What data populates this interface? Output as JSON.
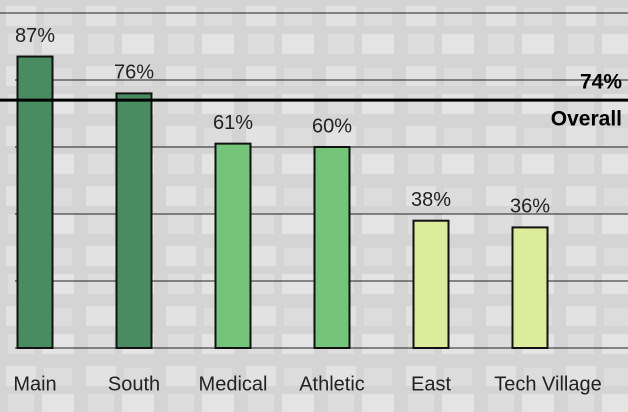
{
  "chart_data": {
    "type": "bar",
    "categories": [
      "Main",
      "South",
      "Medical",
      "Athletic",
      "East",
      "Tech Village"
    ],
    "values": [
      87,
      76,
      61,
      60,
      38,
      36
    ],
    "value_labels": [
      "87%",
      "76%",
      "61%",
      "60%",
      "38%",
      "36%"
    ],
    "colors": [
      "#4a8c62",
      "#4a8c62",
      "#74c47a",
      "#74c47a",
      "#dcec9a",
      "#dcec9a"
    ],
    "ylim": [
      0,
      100
    ],
    "yticks": [
      0,
      20,
      40,
      60,
      80,
      100
    ],
    "grid": true,
    "reference_line": {
      "value": 74,
      "label": "74%",
      "name": "Overall"
    }
  }
}
